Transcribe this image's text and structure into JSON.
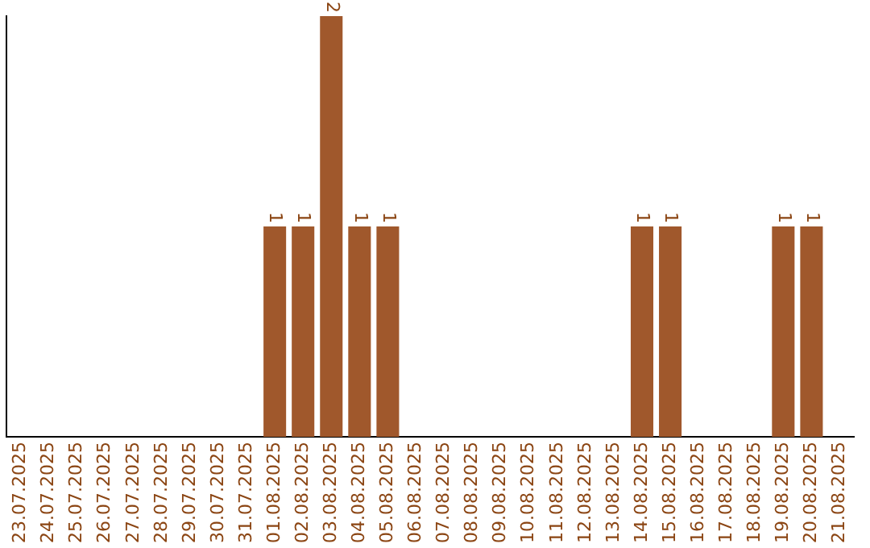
{
  "chart_data": {
    "type": "bar",
    "categories": [
      "23.07.2025",
      "24.07.2025",
      "25.07.2025",
      "26.07.2025",
      "27.07.2025",
      "28.07.2025",
      "29.07.2025",
      "30.07.2025",
      "31.07.2025",
      "01.08.2025",
      "02.08.2025",
      "03.08.2025",
      "04.08.2025",
      "05.08.2025",
      "06.08.2025",
      "07.08.2025",
      "08.08.2025",
      "09.08.2025",
      "10.08.2025",
      "11.08.2025",
      "12.08.2025",
      "13.08.2025",
      "14.08.2025",
      "15.08.2025",
      "16.08.2025",
      "17.08.2025",
      "18.08.2025",
      "19.08.2025",
      "20.08.2025",
      "21.08.2025"
    ],
    "values": [
      0,
      0,
      0,
      0,
      0,
      0,
      0,
      0,
      0,
      1,
      1,
      2,
      1,
      1,
      0,
      0,
      0,
      0,
      0,
      0,
      0,
      0,
      1,
      1,
      0,
      0,
      0,
      1,
      1,
      0
    ],
    "value_labels": [
      null,
      null,
      null,
      null,
      null,
      null,
      null,
      null,
      null,
      "1",
      "1",
      "2",
      "1",
      "1",
      null,
      null,
      null,
      null,
      null,
      null,
      null,
      null,
      "1",
      "1",
      null,
      null,
      null,
      "1",
      "1",
      null
    ],
    "color": "#a0582c",
    "ylim": [
      0,
      2
    ],
    "tick_labels": "x",
    "grid": false,
    "legend": false
  }
}
